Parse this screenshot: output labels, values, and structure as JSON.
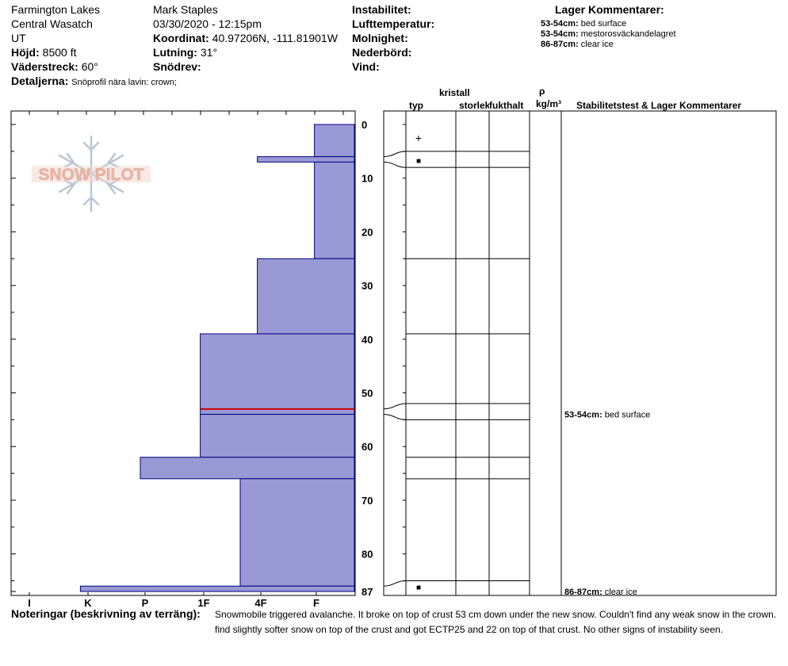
{
  "header": {
    "location": "Farmington Lakes",
    "range": "Central Wasatch",
    "state": "UT",
    "elevation_label": "Höjd:",
    "elevation_value": "8500 ft",
    "aspect_label": "Väderstreck:",
    "aspect_value": "60°",
    "details_label": "Detaljerna:",
    "details_value": "Snöprofil nära lavin: crown;",
    "observer": "Mark Staples",
    "datetime": "03/30/2020 - 12:15pm",
    "coord_label": "Koordinat:",
    "coord_value": "40.97206N, -111.81901W",
    "slope_label": "Lutning:",
    "slope_value": "31°",
    "wind_loading_label": "Snödrev:",
    "instability_label": "Instabilitet:",
    "air_temp_label": "Lufttemperatur:",
    "cloud_label": "Molnighet:",
    "precip_label": "Nederbörd:",
    "wind_label": "Vind:",
    "layer_comments_title": "Lager Kommentarer:",
    "layer_comments": [
      {
        "range": "53-54cm:",
        "text": "bed surface"
      },
      {
        "range": "53-54cm:",
        "text": "mestorosväckandelagret"
      },
      {
        "range": "86-87cm:",
        "text": "clear ice"
      }
    ]
  },
  "logo": {
    "text": "SNOW PILOT"
  },
  "columns": {
    "crystal": "kristall",
    "type": "typ",
    "size": "storlek",
    "moisture": "fukthalt",
    "rho": "ρ",
    "density_unit": "kg/m³",
    "stability": "Stabilitetstest & Lager Kommentarer"
  },
  "hardness_axis": [
    "I",
    "K",
    "P",
    "1F",
    "4F",
    "F"
  ],
  "depth_ticks": [
    "0",
    "10",
    "20",
    "30",
    "40",
    "50",
    "60",
    "70",
    "80",
    "87"
  ],
  "chart_data": {
    "type": "bar",
    "title": "",
    "xlabel": "",
    "ylabel": "",
    "x_categories": [
      "I",
      "K",
      "P",
      "1F",
      "4F",
      "F"
    ],
    "y_range_cm": [
      0,
      87
    ],
    "hardness_scale_note": "F=1, 4F=2, 1F=3, P=4, K=5, I=6",
    "layers": [
      {
        "top": 0,
        "bottom": 6,
        "hardness": 0.7
      },
      {
        "top": 6,
        "bottom": 7,
        "hardness": 1.7
      },
      {
        "top": 7,
        "bottom": 25,
        "hardness": 0.7
      },
      {
        "top": 25,
        "bottom": 39,
        "hardness": 1.7
      },
      {
        "top": 39,
        "bottom": 53,
        "hardness": 2.7
      },
      {
        "top": 53,
        "bottom": 54,
        "hardness": 2.7,
        "weak_layer": true
      },
      {
        "top": 54,
        "bottom": 62,
        "hardness": 2.7
      },
      {
        "top": 62,
        "bottom": 66,
        "hardness": 3.75
      },
      {
        "top": 66,
        "bottom": 86,
        "hardness": 2.0
      },
      {
        "top": 86,
        "bottom": 87,
        "hardness": 4.8
      }
    ]
  },
  "grain_rows": [
    {
      "top": 0,
      "bottom": 5,
      "symbol": "+"
    },
    {
      "top": 5,
      "bottom": 8,
      "symbol": "■"
    },
    {
      "top": 8,
      "bottom": 25,
      "symbol": ""
    },
    {
      "top": 25,
      "bottom": 39,
      "symbol": ""
    },
    {
      "top": 39,
      "bottom": 52,
      "symbol": ""
    },
    {
      "top": 52,
      "bottom": 55,
      "symbol": ""
    },
    {
      "top": 55,
      "bottom": 62,
      "symbol": ""
    },
    {
      "top": 62,
      "bottom": 66,
      "symbol": ""
    },
    {
      "top": 66,
      "bottom": 85,
      "symbol": ""
    },
    {
      "top": 85,
      "bottom": 87,
      "symbol": "■"
    }
  ],
  "stability_comments": [
    {
      "depth": 54,
      "range": "53-54cm:",
      "text": "bed surface"
    },
    {
      "depth": 87,
      "range": "86-87cm:",
      "text": "clear ice"
    }
  ],
  "notes": {
    "label": "Noteringar (beskrivning av terräng):",
    "line1": "Snowmobile triggered avalanche. It broke on top of crust 53 cm down under the new snow. Couldn't find any weak snow in the crown.",
    "line2": "find slightly softer snow on top of the crust and got ECTP25 and 22 on top of that crust. No other signs of instability seen."
  },
  "colors": {
    "layer_fill": "#9999d6",
    "layer_stroke": "#000080",
    "weak_layer": "#cc0000",
    "logo_text": "#e9b8a8",
    "logo_flake": "#b9c7d4"
  }
}
